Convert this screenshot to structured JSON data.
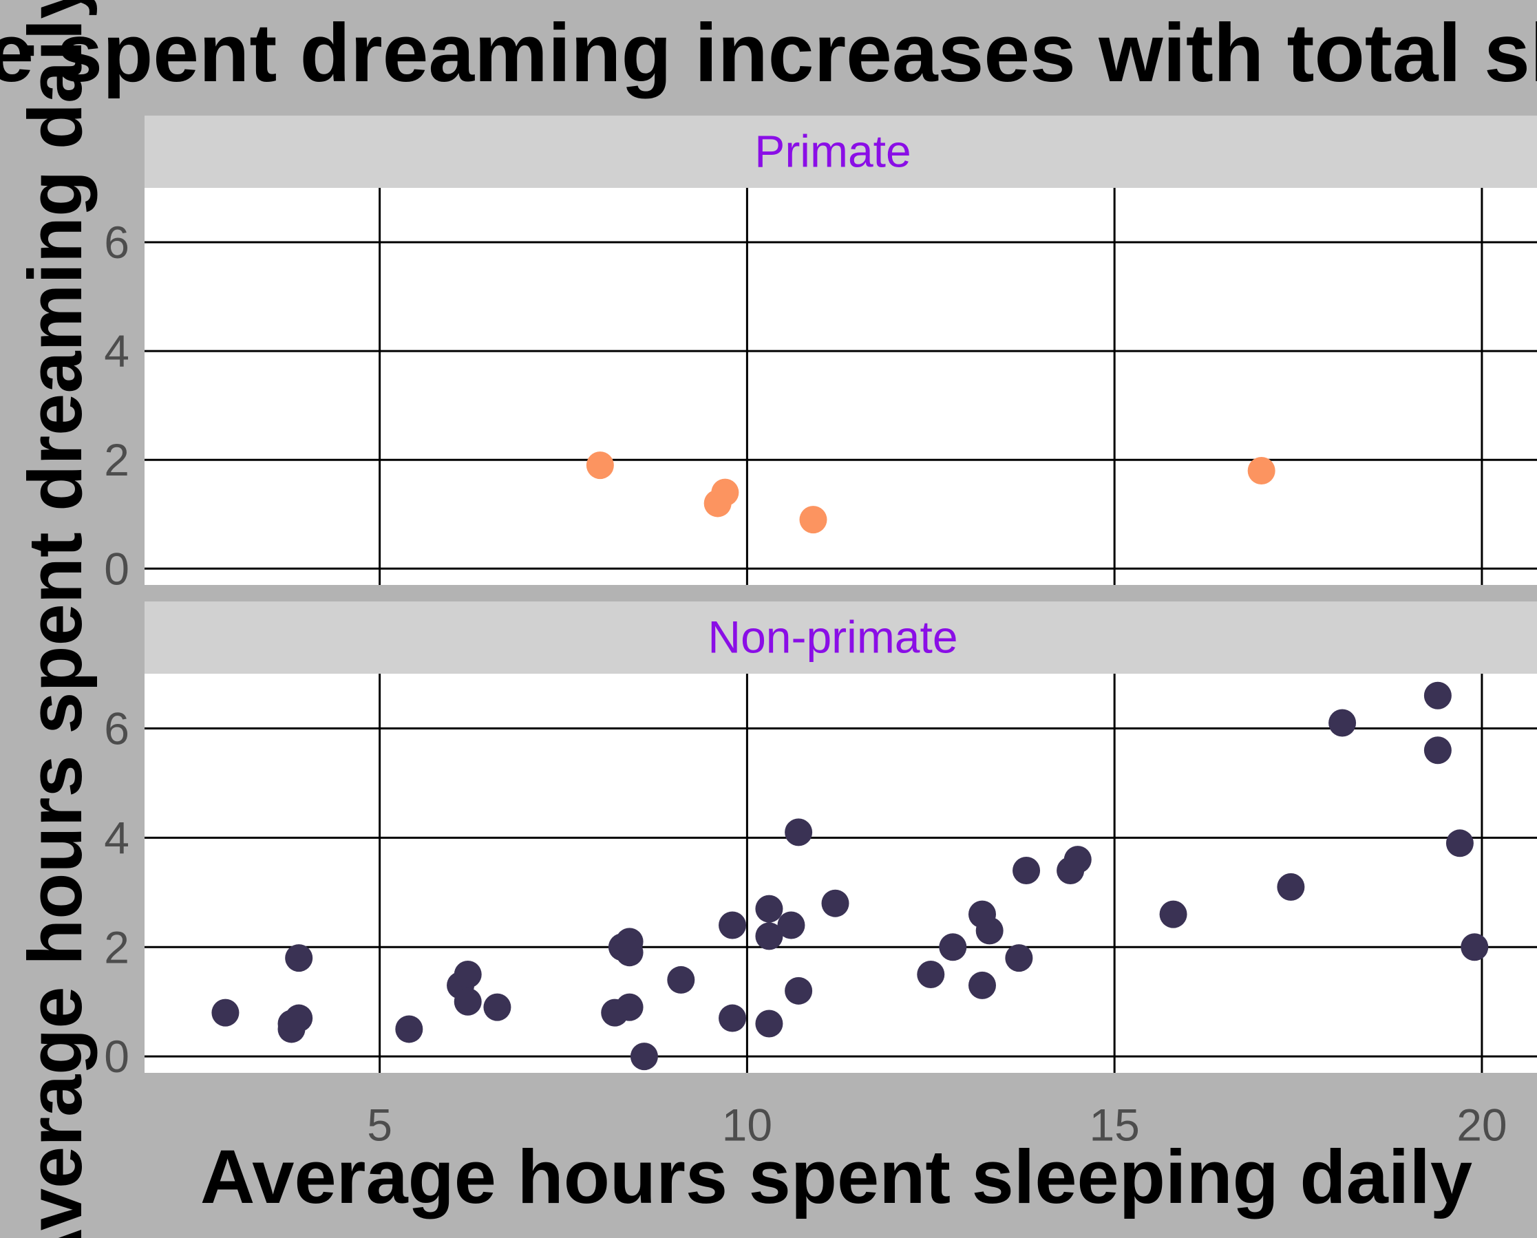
{
  "chart_data": {
    "type": "scatter",
    "title": "Time spent dreaming increases with total sleep",
    "xlabel": "Average hours spent sleeping daily",
    "ylabel": "Average hours spent dreaming daily",
    "xlim": [
      1.8,
      20.75
    ],
    "ylim": [
      -0.3,
      7.0
    ],
    "x_ticks": [
      "5",
      "10",
      "15",
      "20"
    ],
    "y_ticks": [
      "0",
      "2",
      "4",
      "6"
    ],
    "grid": true,
    "legend": "none",
    "facets": [
      {
        "label": "Primate",
        "color": "#fc9460",
        "points": [
          [
            8.0,
            1.9
          ],
          [
            9.6,
            1.2
          ],
          [
            9.7,
            1.4
          ],
          [
            10.9,
            0.9
          ],
          [
            17.0,
            1.8
          ]
        ]
      },
      {
        "label": "Non-primate",
        "color": "#3a3254",
        "points": [
          [
            2.9,
            0.8
          ],
          [
            3.8,
            0.6
          ],
          [
            3.8,
            0.5
          ],
          [
            3.9,
            0.7
          ],
          [
            3.9,
            1.8
          ],
          [
            5.4,
            0.5
          ],
          [
            6.1,
            1.3
          ],
          [
            6.2,
            1.5
          ],
          [
            6.2,
            1.0
          ],
          [
            6.6,
            0.9
          ],
          [
            8.2,
            0.8
          ],
          [
            8.3,
            2.0
          ],
          [
            8.4,
            0.9
          ],
          [
            8.4,
            2.1
          ],
          [
            8.4,
            1.9
          ],
          [
            8.6,
            0.0
          ],
          [
            9.1,
            1.4
          ],
          [
            9.8,
            2.4
          ],
          [
            9.8,
            0.7
          ],
          [
            10.3,
            2.7
          ],
          [
            10.3,
            2.2
          ],
          [
            10.3,
            0.6
          ],
          [
            10.6,
            2.4
          ],
          [
            10.7,
            4.1
          ],
          [
            10.7,
            1.2
          ],
          [
            11.2,
            2.8
          ],
          [
            12.5,
            1.5
          ],
          [
            12.8,
            2.0
          ],
          [
            13.2,
            2.6
          ],
          [
            13.2,
            1.3
          ],
          [
            13.3,
            2.3
          ],
          [
            13.7,
            1.8
          ],
          [
            13.8,
            3.4
          ],
          [
            14.4,
            3.4
          ],
          [
            14.5,
            3.6
          ],
          [
            15.8,
            2.6
          ],
          [
            17.4,
            3.1
          ],
          [
            18.1,
            6.1
          ],
          [
            19.4,
            6.6
          ],
          [
            19.4,
            5.6
          ],
          [
            19.7,
            3.9
          ],
          [
            19.9,
            2.0
          ]
        ]
      }
    ]
  }
}
